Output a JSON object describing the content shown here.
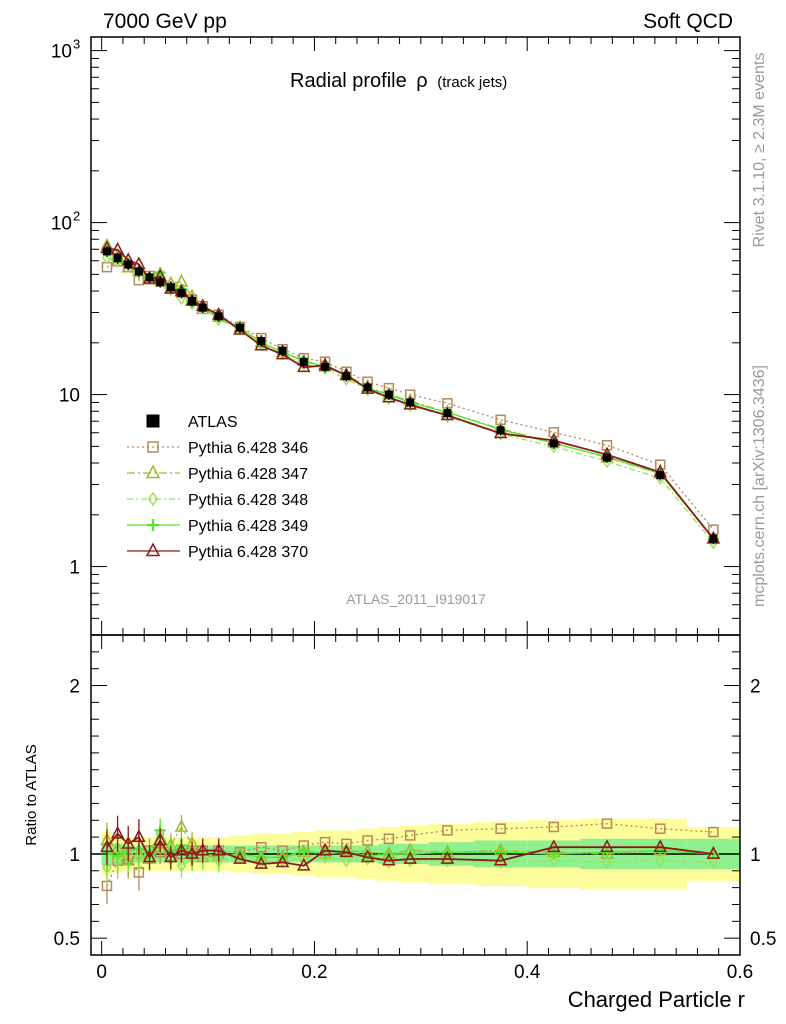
{
  "header": {
    "left": "7000 GeV pp",
    "right": "Soft QCD"
  },
  "side": {
    "rivet": "Rivet 3.1.10, ≥ 2.3M events",
    "mcplots": "mcplots.cern.ch [arXiv:1306.3436]"
  },
  "chart_data": {
    "type": "line",
    "title_main": "Radial profile",
    "title_symbol": "ρ",
    "title_sub": "(track jets)",
    "analysis_id": "ATLAS_2011_I919017",
    "xlabel": "Charged Particle r",
    "ratio_ylabel": "Ratio to ATLAS",
    "xlim": [
      -0.01,
      0.6
    ],
    "xticks": [
      0,
      0.2,
      0.4,
      0.6
    ],
    "xtick_labels": [
      "0",
      "0.2",
      "0.4",
      "0.6"
    ],
    "main_yscale": "log",
    "main_ylim": [
      0.4,
      1200
    ],
    "main_yticks": [
      {
        "value": 1,
        "label": "1",
        "sup": ""
      },
      {
        "value": 10,
        "label": "10",
        "sup": ""
      },
      {
        "value": 100,
        "label": "10",
        "sup": "2"
      },
      {
        "value": 1000,
        "label": "10",
        "sup": "3"
      }
    ],
    "ratio_ylim": [
      0.4,
      2.3
    ],
    "ratio_yticks": [
      {
        "value": 0.5,
        "label": "0.5"
      },
      {
        "value": 1,
        "label": "1"
      },
      {
        "value": 2,
        "label": "2"
      }
    ],
    "x": [
      0.005,
      0.015,
      0.025,
      0.035,
      0.045,
      0.055,
      0.065,
      0.075,
      0.085,
      0.095,
      0.11,
      0.13,
      0.15,
      0.17,
      0.19,
      0.21,
      0.23,
      0.25,
      0.27,
      0.29,
      0.325,
      0.375,
      0.425,
      0.475,
      0.525,
      0.575
    ],
    "bands": {
      "inner_color": "#8ef08e",
      "outer_color": "#fdfd9b",
      "inner_half_width": [
        0.07,
        0.06,
        0.055,
        0.05,
        0.05,
        0.05,
        0.05,
        0.05,
        0.05,
        0.05,
        0.05,
        0.05,
        0.05,
        0.05,
        0.05,
        0.05,
        0.05,
        0.05,
        0.06,
        0.06,
        0.07,
        0.08,
        0.08,
        0.09,
        0.09,
        0.09
      ],
      "outer_half_width": [
        0.13,
        0.11,
        0.1,
        0.1,
        0.1,
        0.1,
        0.1,
        0.1,
        0.1,
        0.1,
        0.1,
        0.11,
        0.12,
        0.12,
        0.13,
        0.14,
        0.14,
        0.15,
        0.16,
        0.17,
        0.18,
        0.19,
        0.2,
        0.21,
        0.21,
        0.16
      ]
    },
    "data": {
      "name": "ATLAS",
      "values": [
        68,
        62,
        57,
        52,
        48,
        45,
        42,
        39,
        35,
        32,
        28.5,
        24.5,
        20.5,
        18,
        15.5,
        14.5,
        12.8,
        11,
        10,
        9,
        7.8,
        6.2,
        5.2,
        4.3,
        3.4,
        1.45
      ]
    },
    "series": [
      {
        "name": "Pythia 6.428 346",
        "color": "#b5895a",
        "marker": "square",
        "dash": "2,3",
        "ratio": [
          0.81,
          0.96,
          0.97,
          0.89,
          1.02,
          1.01,
          0.99,
          1.0,
          1.02,
          1.02,
          1.02,
          1.01,
          1.04,
          1.02,
          1.05,
          1.07,
          1.06,
          1.08,
          1.09,
          1.11,
          1.14,
          1.15,
          1.16,
          1.18,
          1.15,
          1.13
        ]
      },
      {
        "name": "Pythia 6.428 347",
        "color": "#a4b62e",
        "marker": "triangle",
        "dash": "8,3,2,3",
        "ratio": [
          1.08,
          1.03,
          0.96,
          1.0,
          0.97,
          1.03,
          1.05,
          1.16,
          1.06,
          0.98,
          0.99,
          1.0,
          0.98,
          0.98,
          1.01,
          1.0,
          1.02,
          1.01,
          1.0,
          1.02,
          1.01,
          1.02,
          1.01,
          1.0,
          1.02,
          1.0
        ]
      },
      {
        "name": "Pythia 6.428 348",
        "color": "#99e35a",
        "marker": "diamond",
        "dash": "6,3,2,3",
        "ratio": [
          0.92,
          0.96,
          1.0,
          0.98,
          1.0,
          1.12,
          0.97,
          0.93,
          0.97,
          0.99,
          0.96,
          0.98,
          0.95,
          0.96,
          0.97,
          0.98,
          0.96,
          0.97,
          0.95,
          0.96,
          0.96,
          0.95,
          0.96,
          0.95,
          0.96,
          0.95
        ]
      },
      {
        "name": "Pythia 6.428 349",
        "color": "#52e829",
        "marker": "cross",
        "dash": "",
        "ratio": [
          1.0,
          0.99,
          1.02,
          1.03,
          1.0,
          1.14,
          1.01,
          1.05,
          0.98,
          1.0,
          0.99,
          1.0,
          0.98,
          0.98,
          1.02,
          1.0,
          1.01,
          0.99,
          1.0,
          1.0,
          1.01,
          1.01,
          1.0,
          1.01,
          1.02,
          1.0
        ]
      },
      {
        "name": "Pythia 6.428 370",
        "color": "#8b1a1a",
        "marker": "triangle",
        "dash": "",
        "ratio": [
          1.04,
          1.12,
          1.06,
          1.1,
          0.98,
          1.08,
          0.98,
          1.02,
          1.0,
          1.02,
          1.02,
          0.97,
          0.94,
          0.95,
          0.93,
          1.02,
          1.01,
          0.98,
          0.96,
          0.97,
          0.97,
          0.96,
          1.04,
          1.04,
          1.04,
          1.0
        ]
      }
    ]
  }
}
